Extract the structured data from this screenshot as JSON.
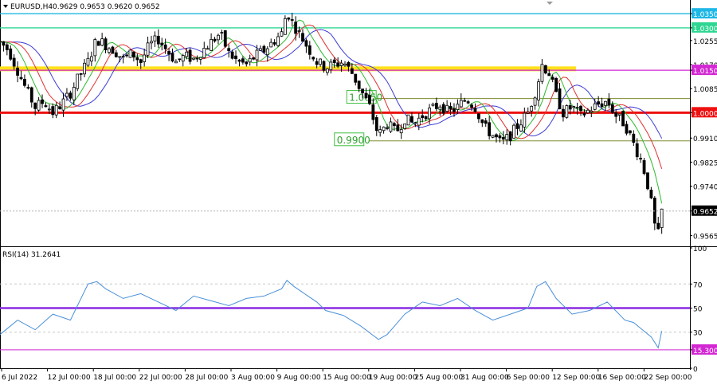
{
  "header": {
    "symbol": "EURUSD,H4",
    "ohlc": "0.9629 0.9653 0.9620 0.9652"
  },
  "rsi_label": "RSI(14) 31.2641",
  "chart_data": [
    {
      "type": "candlestick",
      "symbol": "EURUSD",
      "timeframe": "H4",
      "last_ohlc": {
        "open": 0.9629,
        "high": 0.9653,
        "low": 0.962,
        "close": 0.9652
      },
      "last_price_label": "0.9652",
      "ylim": [
        0.953,
        1.039
      ],
      "y_ticks": [
        "1.0350",
        "1.0300",
        "1.0255",
        "1.0170",
        "1.0150",
        "1.0085",
        "1.0000",
        "0.9910",
        "0.9825",
        "0.9740",
        "0.9652",
        "0.9565"
      ],
      "x_ticks": [
        "6 Jul 2022",
        "12 Jul 00:00",
        "18 Jul 00:00",
        "22 Jul 00:00",
        "28 Jul 00:00",
        "3 Aug 00:00",
        "9 Aug 00:00",
        "15 Aug 00:00",
        "19 Aug 00:00",
        "25 Aug 00:00",
        "31 Aug 00:00",
        "6 Sep 00:00",
        "12 Sep 00:00",
        "16 Sep 00:00",
        "22 Sep 00:00"
      ],
      "horizontal_levels": [
        {
          "price": 1.035,
          "label": "1.0350",
          "color": "#1fb7e6",
          "marker": true
        },
        {
          "price": 1.03,
          "label": "1.0300",
          "color": "#2ed692",
          "marker": true
        },
        {
          "price": 1.015,
          "label": "1.0150",
          "color": "#d227d2",
          "marker": true
        },
        {
          "price": 1.0,
          "label": "1.0000",
          "color": "#ee1010",
          "marker": true
        },
        {
          "price": 1.005,
          "label": "1.0050",
          "color": "#7d8a2f",
          "marker": false,
          "box_label": true
        },
        {
          "price": 0.99,
          "label": "0.9900",
          "color": "#7d8a2f",
          "marker": false,
          "box_label": true
        }
      ],
      "zone": {
        "price": 1.0155,
        "color": "#ffe11a"
      },
      "moving_average_colors": {
        "fast": "#2eb82e",
        "medium": "#e03131",
        "slow": "#3b3bd6"
      },
      "close_path": [
        [
          0,
          1.025
        ],
        [
          5,
          1.022
        ],
        [
          10,
          1.015
        ],
        [
          15,
          1.008
        ],
        [
          20,
          1.002
        ],
        [
          25,
          1.004
        ],
        [
          30,
          1.0
        ],
        [
          35,
          1.003
        ],
        [
          40,
          1.007
        ],
        [
          45,
          1.013
        ],
        [
          50,
          1.018
        ],
        [
          55,
          1.026
        ],
        [
          60,
          1.024
        ],
        [
          65,
          1.022
        ],
        [
          70,
          1.019
        ],
        [
          75,
          1.021
        ],
        [
          80,
          1.018
        ],
        [
          85,
          1.024
        ],
        [
          90,
          1.026
        ],
        [
          95,
          1.022
        ],
        [
          100,
          1.018
        ],
        [
          105,
          1.02
        ],
        [
          110,
          1.019
        ],
        [
          115,
          1.022
        ],
        [
          120,
          1.025
        ],
        [
          125,
          1.028
        ],
        [
          130,
          1.021
        ],
        [
          135,
          1.018
        ],
        [
          140,
          1.017
        ],
        [
          145,
          1.02
        ],
        [
          150,
          1.022
        ],
        [
          155,
          1.025
        ],
        [
          160,
          1.028
        ],
        [
          163,
          1.036
        ],
        [
          166,
          1.032
        ],
        [
          170,
          1.028
        ],
        [
          175,
          1.023
        ],
        [
          180,
          1.018
        ],
        [
          185,
          1.016
        ],
        [
          190,
          1.017
        ],
        [
          195,
          1.018
        ],
        [
          200,
          1.014
        ],
        [
          205,
          1.008
        ],
        [
          210,
          1.002
        ],
        [
          215,
          0.992
        ],
        [
          220,
          0.996
        ],
        [
          225,
          0.993
        ],
        [
          230,
          0.998
        ],
        [
          235,
          0.996
        ],
        [
          240,
          0.999
        ],
        [
          245,
          1.001
        ],
        [
          250,
          1.003
        ],
        [
          255,
          1.0
        ],
        [
          260,
          1.002
        ],
        [
          265,
          1.005
        ],
        [
          270,
          1.002
        ],
        [
          275,
          0.995
        ],
        [
          280,
          0.992
        ],
        [
          285,
          0.989
        ],
        [
          290,
          0.992
        ],
        [
          295,
          0.996
        ],
        [
          300,
          1.0
        ],
        [
          305,
          1.009
        ],
        [
          308,
          1.017
        ],
        [
          312,
          1.014
        ],
        [
          316,
          1.006
        ],
        [
          320,
          1.0
        ],
        [
          325,
          1.002
        ],
        [
          330,
          0.999
        ],
        [
          335,
          1.001
        ],
        [
          340,
          1.003
        ],
        [
          345,
          1.004
        ],
        [
          350,
          0.999
        ],
        [
          355,
          0.996
        ],
        [
          360,
          0.989
        ],
        [
          365,
          0.982
        ],
        [
          369,
          0.972
        ],
        [
          372,
          0.96
        ],
        [
          374,
          0.957
        ],
        [
          376,
          0.9652
        ]
      ]
    },
    {
      "type": "line",
      "indicator": "RSI",
      "period": 14,
      "value": 31.2641,
      "ylim": [
        0,
        100
      ],
      "y_ticks": [
        "100",
        "70",
        "50",
        "30",
        "15.3000",
        "0"
      ],
      "reference_levels": [
        {
          "value": 70,
          "color": "#c8c8c8"
        },
        {
          "value": 50,
          "color": "#8a2be2"
        },
        {
          "value": 30,
          "color": "#c8c8c8"
        },
        {
          "value": 15.3,
          "label": "15.3000",
          "color": "#d227d2"
        }
      ],
      "line_color": "#4a90d9",
      "series": [
        [
          0,
          28
        ],
        [
          10,
          40
        ],
        [
          20,
          32
        ],
        [
          30,
          45
        ],
        [
          40,
          40
        ],
        [
          50,
          70
        ],
        [
          55,
          72
        ],
        [
          60,
          66
        ],
        [
          70,
          58
        ],
        [
          80,
          62
        ],
        [
          90,
          55
        ],
        [
          100,
          48
        ],
        [
          110,
          60
        ],
        [
          120,
          56
        ],
        [
          130,
          52
        ],
        [
          140,
          58
        ],
        [
          150,
          60
        ],
        [
          160,
          66
        ],
        [
          163,
          73
        ],
        [
          167,
          68
        ],
        [
          175,
          60
        ],
        [
          180,
          55
        ],
        [
          185,
          48
        ],
        [
          195,
          44
        ],
        [
          205,
          35
        ],
        [
          215,
          24
        ],
        [
          220,
          28
        ],
        [
          230,
          45
        ],
        [
          240,
          55
        ],
        [
          250,
          52
        ],
        [
          260,
          58
        ],
        [
          270,
          48
        ],
        [
          280,
          40
        ],
        [
          290,
          45
        ],
        [
          300,
          50
        ],
        [
          305,
          68
        ],
        [
          310,
          72
        ],
        [
          316,
          58
        ],
        [
          325,
          45
        ],
        [
          335,
          48
        ],
        [
          345,
          55
        ],
        [
          355,
          40
        ],
        [
          360,
          38
        ],
        [
          365,
          32
        ],
        [
          370,
          26
        ],
        [
          374,
          17
        ],
        [
          376,
          31
        ]
      ]
    }
  ]
}
